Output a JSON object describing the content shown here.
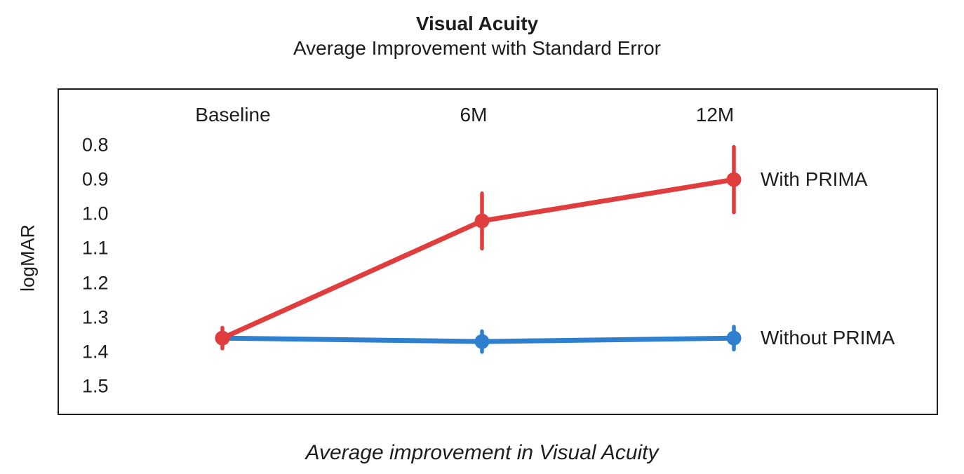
{
  "header": {
    "title": "Visual Acuity",
    "subtitle": "Average Improvement with Standard Error"
  },
  "caption": "Average improvement in Visual Acuity",
  "colors": {
    "with_prima": "#E03E3E",
    "without_prima": "#2E80CE",
    "plot_border": "#1F1F1F",
    "text": "#1D1D1D"
  },
  "chart_data": {
    "type": "line",
    "title": "Visual Acuity",
    "subtitle": "Average Improvement with Standard Error",
    "caption": "Average improvement in Visual Acuity",
    "categories": [
      "Baseline",
      "6M",
      "12M"
    ],
    "x_labels_position": "top-inside",
    "ylabel": "logMAR",
    "y_ticks": [
      "0.8",
      "0.9",
      "1.0",
      "1.1",
      "1.2",
      "1.3",
      "1.4",
      "1.5"
    ],
    "y_axis": {
      "min": 0.8,
      "max": 1.5,
      "tick_step": 0.1,
      "inverted": true,
      "labels_inside": true
    },
    "grid": false,
    "error_bars": "standard error, vertical, no caps",
    "legend_position": "right-of-last-point",
    "series": [
      {
        "name": "With PRIMA",
        "color": "#E03E3E",
        "values": [
          1.36,
          1.02,
          0.9
        ],
        "stderr": [
          0.03,
          0.08,
          0.095
        ]
      },
      {
        "name": "Without PRIMA",
        "color": "#2E80CE",
        "values": [
          1.36,
          1.37,
          1.36
        ],
        "stderr": [
          0,
          0.03,
          0.033
        ]
      }
    ]
  }
}
